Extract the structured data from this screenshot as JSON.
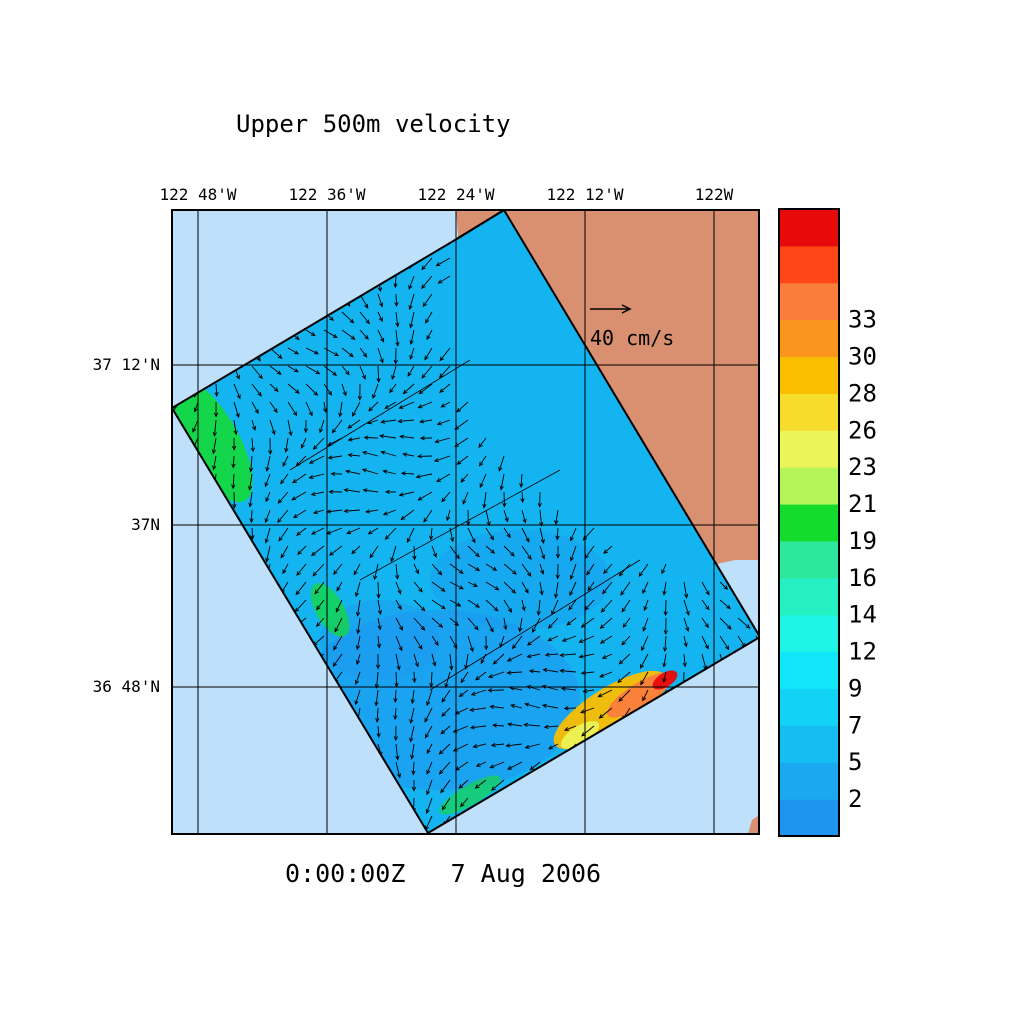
{
  "title": "Upper 500m velocity",
  "timestamp": "0:00:00Z   7 Aug 2006",
  "x_axis_labels": [
    "122 48'W",
    "122 36'W",
    "122 24'W",
    "122 12'W",
    "122W"
  ],
  "y_axis_labels": [
    "37 12'N",
    "37N",
    "36 48'N"
  ],
  "reference_vector": {
    "label": "40 cm/s",
    "speed_cm_s": 40
  },
  "colorbar": {
    "tick_labels": [
      "2",
      "5",
      "7",
      "9",
      "12",
      "14",
      "16",
      "19",
      "21",
      "23",
      "26",
      "28",
      "30",
      "33"
    ],
    "colors": [
      "#1e96f0",
      "#1aa8f0",
      "#16bdf2",
      "#12d2f5",
      "#10e6f8",
      "#1ef5e6",
      "#25f0c4",
      "#2de89c",
      "#14dc2d",
      "#b4f55a",
      "#ebf55a",
      "#f5dc2d",
      "#fabe00",
      "#fa961e",
      "#fa7d3c",
      "#ff4614",
      "#e60a0a"
    ]
  },
  "colors": {
    "ocean_outside": "#bfe0fa",
    "land": "#d99070",
    "domain_water": "#14b4f0",
    "speed_low": "#1e96f0",
    "speed_mid": "#14dc2d",
    "speed_high": "#e60a0a"
  }
}
